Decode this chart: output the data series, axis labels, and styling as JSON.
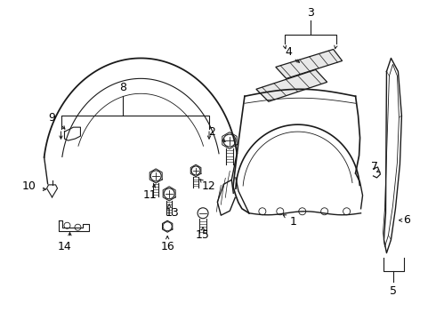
{
  "background_color": "#ffffff",
  "line_color": "#1a1a1a",
  "label_color": "#000000",
  "font_size": 8.0,
  "fig_w": 4.9,
  "fig_h": 3.6,
  "dpi": 100
}
